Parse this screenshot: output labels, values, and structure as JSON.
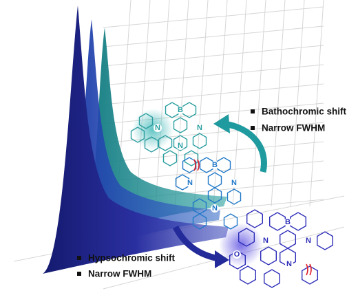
{
  "annotations": {
    "upper": {
      "items": [
        "Bathochromic shift",
        "Narrow FWHM"
      ]
    },
    "lower": {
      "items": [
        "Hypsochromic shift",
        "Narrow FWHM"
      ]
    }
  },
  "molecules": [
    {
      "atoms": [
        "B",
        "N",
        "N",
        "N"
      ]
    },
    {
      "atoms": [
        "B",
        "N",
        "N",
        "N"
      ]
    },
    {
      "atoms": [
        "B",
        "N",
        "N",
        "N",
        "O"
      ]
    }
  ]
}
